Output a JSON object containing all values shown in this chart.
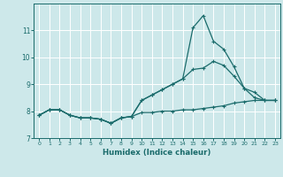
{
  "xlabel": "Humidex (Indice chaleur)",
  "xlim": [
    -0.5,
    23.5
  ],
  "ylim": [
    7,
    12
  ],
  "yticks": [
    7,
    8,
    9,
    10,
    11
  ],
  "xticks": [
    0,
    1,
    2,
    3,
    4,
    5,
    6,
    7,
    8,
    9,
    10,
    11,
    12,
    13,
    14,
    15,
    16,
    17,
    18,
    19,
    20,
    21,
    22,
    23
  ],
  "bg_color": "#cde8ea",
  "grid_color": "#ffffff",
  "line_color": "#1a6b6b",
  "line1_x": [
    0,
    1,
    2,
    3,
    4,
    5,
    6,
    7,
    8,
    9,
    10,
    11,
    12,
    13,
    14,
    15,
    16,
    17,
    18,
    19,
    20,
    21,
    22,
    23
  ],
  "line1_y": [
    7.85,
    8.05,
    8.05,
    7.85,
    7.75,
    7.75,
    7.7,
    7.55,
    7.75,
    7.8,
    7.95,
    7.95,
    8.0,
    8.0,
    8.05,
    8.05,
    8.1,
    8.15,
    8.2,
    8.3,
    8.35,
    8.4,
    8.4,
    8.4
  ],
  "line2_x": [
    0,
    1,
    2,
    3,
    4,
    5,
    6,
    7,
    8,
    9,
    10,
    11,
    12,
    13,
    14,
    15,
    16,
    17,
    18,
    19,
    20,
    21,
    22,
    23
  ],
  "line2_y": [
    7.85,
    8.05,
    8.05,
    7.85,
    7.75,
    7.75,
    7.7,
    7.55,
    7.75,
    7.8,
    8.4,
    8.6,
    8.8,
    9.0,
    9.2,
    9.55,
    9.6,
    9.85,
    9.7,
    9.3,
    8.85,
    8.5,
    8.4,
    8.4
  ],
  "line3_x": [
    0,
    1,
    2,
    3,
    4,
    5,
    6,
    7,
    8,
    9,
    10,
    11,
    12,
    13,
    14,
    15,
    16,
    17,
    18,
    19,
    20,
    21,
    22,
    23
  ],
  "line3_y": [
    7.85,
    8.05,
    8.05,
    7.85,
    7.75,
    7.75,
    7.7,
    7.55,
    7.75,
    7.8,
    8.4,
    8.6,
    8.8,
    9.0,
    9.2,
    11.1,
    11.55,
    10.6,
    10.3,
    9.65,
    8.85,
    8.7,
    8.4,
    8.4
  ],
  "marker": "+",
  "markersize": 3.5,
  "linewidth": 0.9
}
